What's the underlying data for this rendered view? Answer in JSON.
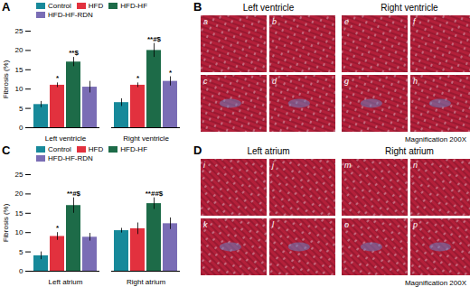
{
  "chart_data": [
    {
      "type": "bar",
      "title": "A",
      "y_label": "Fibrosis (%)",
      "categories": [
        "Left ventricle",
        "Right ventricle"
      ],
      "ylim": [
        0,
        25
      ],
      "yticks": [
        0,
        5,
        10,
        15,
        20,
        25
      ],
      "series": [
        {
          "name": "Control",
          "color": "#17899a",
          "values": [
            6,
            6.5
          ],
          "errors": [
            0.8,
            1.0
          ],
          "annotations": [
            null,
            null
          ]
        },
        {
          "name": "HFD",
          "color": "#e2313e",
          "values": [
            11,
            11
          ],
          "errors": [
            0.6,
            0.6
          ],
          "annotations": [
            "*",
            "*"
          ]
        },
        {
          "name": "HFD-HF",
          "color": "#1d6b48",
          "values": [
            17,
            20
          ],
          "errors": [
            1.2,
            1.8
          ],
          "annotations": [
            "**$",
            "**#$"
          ]
        },
        {
          "name": "HFD-HF-RDN",
          "color": "#7a6db5",
          "values": [
            10.5,
            12
          ],
          "errors": [
            1.5,
            1.2
          ],
          "annotations": [
            null,
            "*"
          ]
        }
      ]
    },
    {
      "type": "bar",
      "title": "C",
      "y_label": "Fibrosis (%)",
      "categories": [
        "Left atrium",
        "Right atrium"
      ],
      "ylim": [
        0,
        25
      ],
      "yticks": [
        0,
        5,
        10,
        15,
        20,
        25
      ],
      "series": [
        {
          "name": "Control",
          "color": "#17899a",
          "values": [
            4,
            10.5
          ],
          "errors": [
            1.0,
            0.6
          ],
          "annotations": [
            null,
            null
          ]
        },
        {
          "name": "HFD",
          "color": "#e2313e",
          "values": [
            9,
            11
          ],
          "errors": [
            1.0,
            1.5
          ],
          "annotations": [
            "*",
            null
          ]
        },
        {
          "name": "HFD-HF",
          "color": "#1d6b48",
          "values": [
            17,
            17.5
          ],
          "errors": [
            2.0,
            1.5
          ],
          "annotations": [
            "**#$",
            "**##$"
          ]
        },
        {
          "name": "HFD-HF-RDN",
          "color": "#7a6db5",
          "values": [
            8.8,
            12.3
          ],
          "errors": [
            1.0,
            1.5
          ],
          "annotations": [
            null,
            null
          ]
        }
      ]
    }
  ],
  "micrographs": [
    {
      "title": "B",
      "caption": "Magnification 200X",
      "groups": [
        {
          "title": "Left ventricle",
          "labels": [
            "a",
            "b",
            "c",
            "d"
          ]
        },
        {
          "title": "Right ventricle",
          "labels": [
            "e",
            "f",
            "g",
            "h"
          ]
        }
      ]
    },
    {
      "title": "D",
      "caption": "Magnification 200X",
      "groups": [
        {
          "title": "Left atrium",
          "labels": [
            "i",
            "j",
            "k",
            "l"
          ]
        },
        {
          "title": "Right atrium",
          "labels": [
            "m",
            "n",
            "o",
            "p"
          ]
        }
      ]
    }
  ]
}
